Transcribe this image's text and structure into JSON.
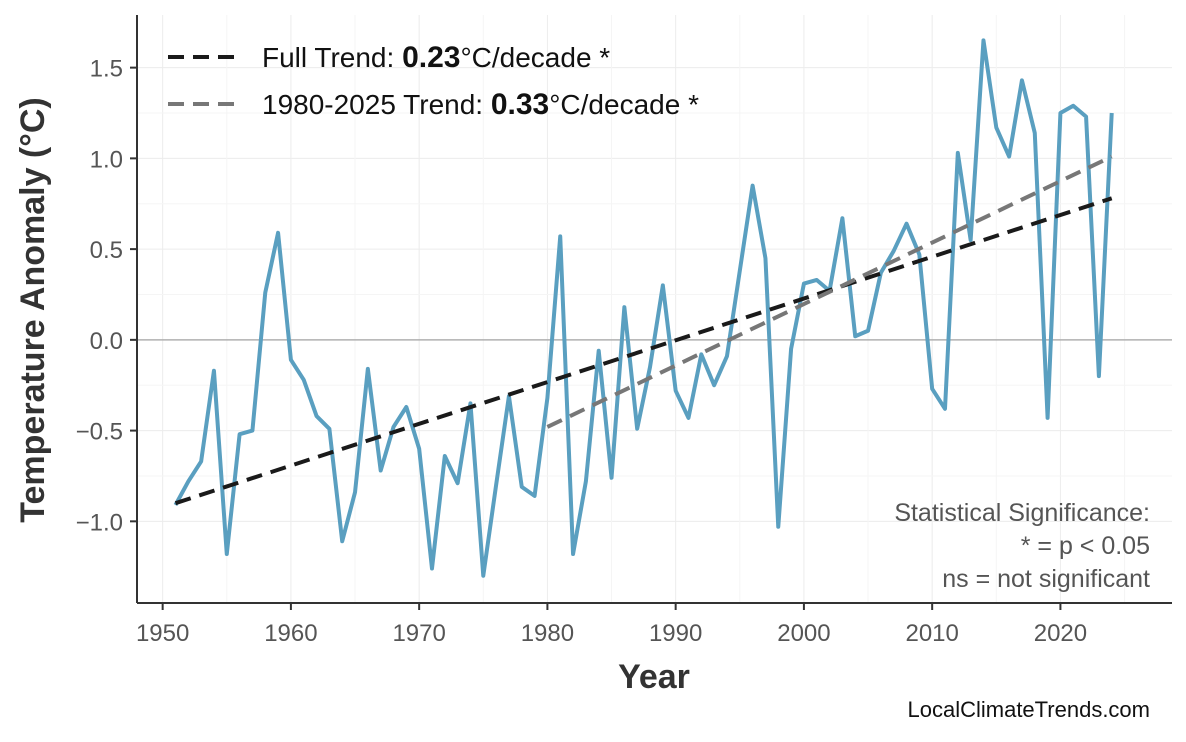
{
  "chart_data": {
    "type": "line",
    "xlabel": "Year",
    "ylabel": "Temperature Anomaly (°C)",
    "xlim": [
      1948,
      2028.7
    ],
    "ylim": [
      -1.45,
      1.79
    ],
    "xticks": [
      1950,
      1960,
      1970,
      1980,
      1990,
      2000,
      2010,
      2020
    ],
    "yticks": [
      -1.0,
      -0.5,
      0.0,
      0.5,
      1.0,
      1.5
    ],
    "ytick_labels": [
      "−1.0",
      "−0.5",
      "0.0",
      "0.5",
      "1.0",
      "1.5"
    ],
    "grid": true,
    "zero_line": true,
    "colors": {
      "series": "#5a9fc0",
      "full_trend": "#1a1a1a",
      "recent_trend": "#777777",
      "zero_line": "#b0b0b0",
      "grid": "#ececec"
    },
    "series": [
      {
        "x": [
          1951,
          1952,
          1953,
          1954,
          1955,
          1956,
          1957,
          1958,
          1959,
          1960,
          1961,
          1962,
          1963,
          1964,
          1965,
          1966,
          1967,
          1968,
          1969,
          1970,
          1971,
          1972,
          1973,
          1974,
          1975,
          1976,
          1977,
          1978,
          1979,
          1980,
          1981,
          1982,
          1983,
          1984,
          1985,
          1986,
          1987,
          1988,
          1989,
          1990,
          1991,
          1992,
          1993,
          1994,
          1995,
          1996,
          1997,
          1998,
          1999,
          2000,
          2001,
          2002,
          2003,
          2004,
          2005,
          2006,
          2007,
          2008,
          2009,
          2010,
          2011,
          2012,
          2013,
          2014,
          2015,
          2016,
          2017,
          2018,
          2019,
          2020,
          2021,
          2022,
          2023,
          2024
        ],
        "values": [
          -0.91,
          -0.78,
          -0.67,
          -0.17,
          -1.18,
          -0.52,
          -0.5,
          0.26,
          0.59,
          -0.11,
          -0.22,
          -0.42,
          -0.49,
          -1.11,
          -0.84,
          -0.16,
          -0.72,
          -0.48,
          -0.37,
          -0.6,
          -1.26,
          -0.64,
          -0.79,
          -0.35,
          -1.3,
          -0.8,
          -0.31,
          -0.81,
          -0.86,
          -0.32,
          0.57,
          -1.18,
          -0.78,
          -0.06,
          -0.76,
          0.18,
          -0.49,
          -0.15,
          0.3,
          -0.28,
          -0.43,
          -0.08,
          -0.25,
          -0.09,
          0.38,
          0.85,
          0.45,
          -1.03,
          -0.05,
          0.31,
          0.33,
          0.27,
          0.67,
          0.02,
          0.05,
          0.37,
          0.49,
          0.64,
          0.47,
          -0.27,
          -0.38,
          1.03,
          0.55,
          1.65,
          1.17,
          1.01,
          1.43,
          1.14,
          -0.43,
          1.25,
          1.29,
          1.23,
          -0.2,
          1.25
        ]
      }
    ],
    "trends": [
      {
        "label_prefix": "Full Trend: ",
        "rate": "0.23",
        "label_suffix": "°C/decade *",
        "x": [
          1951,
          2024
        ],
        "y": [
          -0.9,
          0.78
        ]
      },
      {
        "label_prefix": "1980-2025 Trend: ",
        "rate": "0.33",
        "label_suffix": "°C/decade *",
        "x": [
          1980,
          2024
        ],
        "y": [
          -0.48,
          1.01
        ]
      }
    ],
    "legend_position": "top-left",
    "annotation": [
      "Statistical Significance:",
      "* = p < 0.05",
      "ns = not significant"
    ]
  },
  "watermark": "LocalClimateTrends.com"
}
